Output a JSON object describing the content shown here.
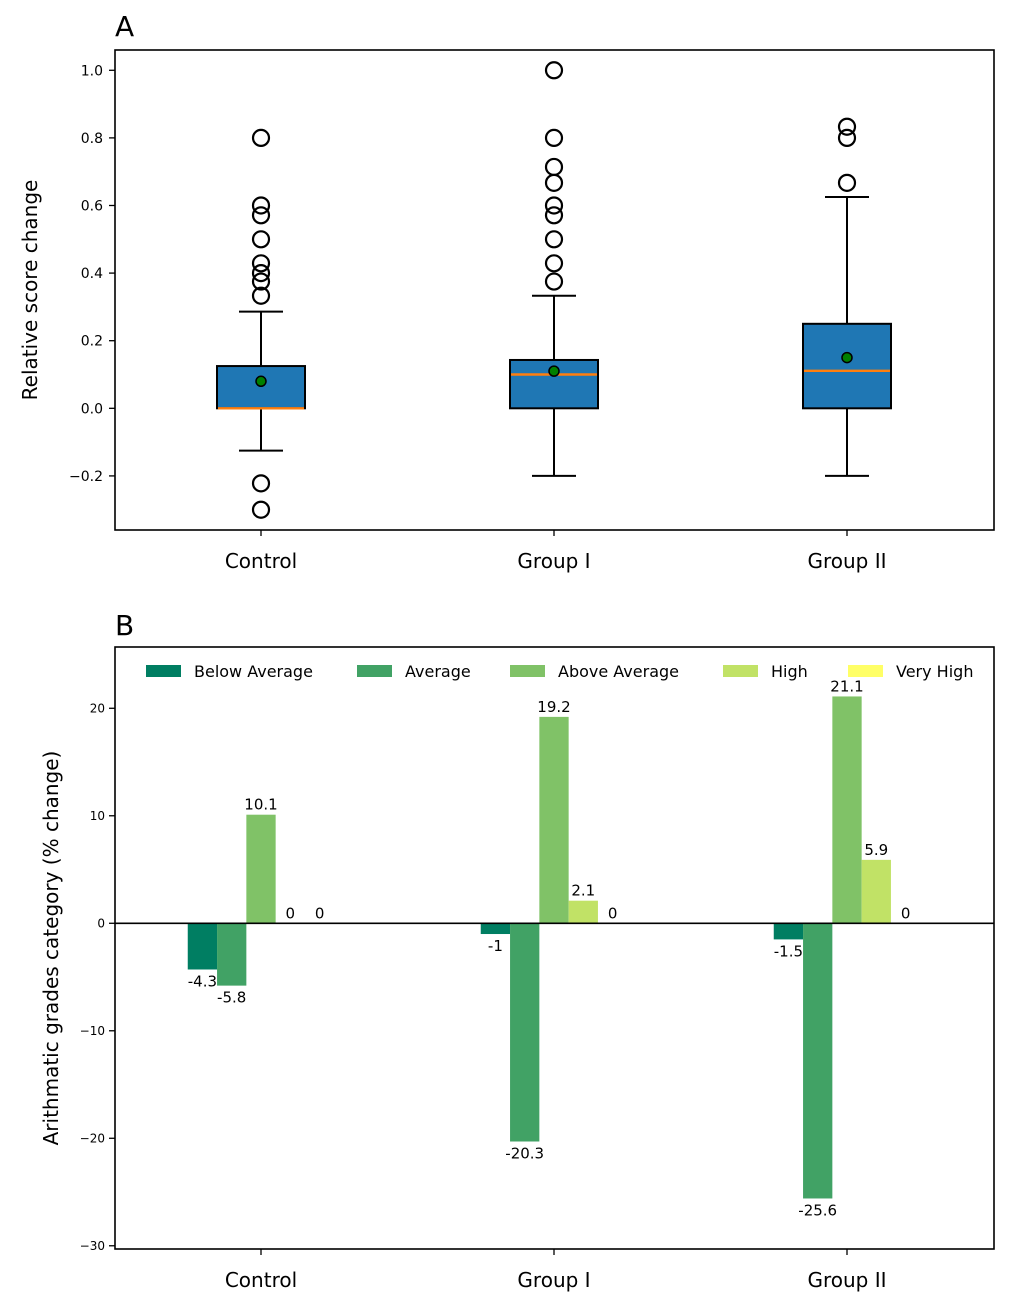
{
  "chart_data": [
    {
      "panel": "A",
      "type": "box",
      "ylabel": "Relative score change",
      "categories": [
        "Control",
        "Group I",
        "Group II"
      ],
      "ylim": [
        -0.36,
        1.06
      ],
      "yticks": [
        -0.2,
        0.0,
        0.2,
        0.4,
        0.6,
        0.8,
        1.0
      ],
      "ytick_labels": [
        "−0.2",
        "0.0",
        "0.2",
        "0.4",
        "0.6",
        "0.8",
        "1.0"
      ],
      "box_color": "#1f77b4",
      "median_color": "#ff7f0e",
      "mean_color": "#008000",
      "boxes": [
        {
          "name": "Control",
          "q1": 0.0,
          "median": 0.0,
          "q3": 0.125,
          "whisker_low": -0.125,
          "whisker_high": 0.286,
          "mean": 0.08,
          "outliers": [
            0.8,
            0.6,
            0.571,
            0.5,
            0.429,
            0.4,
            0.375,
            0.333,
            -0.222,
            -0.3
          ]
        },
        {
          "name": "Group I",
          "q1": 0.0,
          "median": 0.1,
          "q3": 0.143,
          "whisker_low": -0.2,
          "whisker_high": 0.333,
          "mean": 0.11,
          "outliers": [
            1.0,
            0.8,
            0.714,
            0.667,
            0.6,
            0.571,
            0.5,
            0.429,
            0.375
          ]
        },
        {
          "name": "Group II",
          "q1": 0.0,
          "median": 0.111,
          "q3": 0.25,
          "whisker_low": -0.2,
          "whisker_high": 0.625,
          "mean": 0.15,
          "outliers": [
            0.833,
            0.8,
            0.667
          ]
        }
      ]
    },
    {
      "panel": "B",
      "type": "bar",
      "ylabel": "Arithmatic grades category (% change)",
      "categories": [
        "Control",
        "Group I",
        "Group II"
      ],
      "ylim": [
        -30.3,
        25.7
      ],
      "yticks": [
        -30,
        -20,
        -10,
        0,
        10,
        20
      ],
      "ytick_labels": [
        "−30",
        "−20",
        "−10",
        "0",
        "10",
        "20"
      ],
      "legend_position": "top",
      "series": [
        {
          "name": "Below Average",
          "color": "#007e62",
          "values": [
            -4.3,
            -1,
            -1.5
          ],
          "labels": [
            "-4.3",
            "-1",
            "-1.5"
          ]
        },
        {
          "name": "Average",
          "color": "#41a265",
          "values": [
            -5.8,
            -20.3,
            -25.6
          ],
          "labels": [
            "-5.8",
            "-20.3",
            "-25.6"
          ]
        },
        {
          "name": "Above Average",
          "color": "#80c267",
          "values": [
            10.1,
            19.2,
            21.1
          ],
          "labels": [
            "10.1",
            "19.2",
            "21.1"
          ]
        },
        {
          "name": "High",
          "color": "#c1e266",
          "values": [
            0,
            2.1,
            5.9
          ],
          "labels": [
            "0",
            "2.1",
            "5.9"
          ]
        },
        {
          "name": "Very High",
          "color": "#ffff66",
          "values": [
            0,
            0,
            0
          ],
          "labels": [
            "0",
            "0",
            "0"
          ]
        }
      ]
    }
  ],
  "panel_labels": [
    "A",
    "B"
  ]
}
